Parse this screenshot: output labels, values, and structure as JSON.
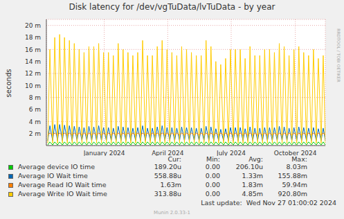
{
  "chart_data": {
    "type": "line",
    "title": "Disk latency for /dev/vgTuData/lvTuData - by year",
    "ylabel": "seconds",
    "watermark": "RRDTOOL / TOBI OETIKER",
    "last_update": "Last update:  Wed Nov 27 01:00:02 2024",
    "credit": "Munin 2.0.33-1",
    "legend": "bottom",
    "grid": true,
    "legend_columns": [
      "Cur:",
      "Min:",
      "Avg:",
      "Max:"
    ],
    "xlim": [
      0,
      400
    ],
    "xticks": [
      {
        "value": 83,
        "label": "January 2024"
      },
      {
        "value": 174,
        "label": "April 2024"
      },
      {
        "value": 265,
        "label": "July 2024"
      },
      {
        "value": 357,
        "label": "October 2024"
      }
    ],
    "ylim": [
      0,
      0.021
    ],
    "yticks": [
      {
        "value": 0.002,
        "label": "2 m"
      },
      {
        "value": 0.004,
        "label": "4 m"
      },
      {
        "value": 0.006,
        "label": "6 m"
      },
      {
        "value": 0.008,
        "label": "8 m"
      },
      {
        "value": 0.01,
        "label": "10 m"
      },
      {
        "value": 0.012,
        "label": "12 m"
      },
      {
        "value": 0.014,
        "label": "14 m"
      },
      {
        "value": 0.016,
        "label": "16 m"
      },
      {
        "value": 0.018,
        "label": "18 m"
      },
      {
        "value": 0.02,
        "label": "20 m"
      }
    ],
    "x": [
      2,
      5,
      9,
      12,
      16,
      19,
      23,
      26,
      30,
      33,
      37,
      40,
      44,
      47,
      51,
      54,
      58,
      61,
      65,
      68,
      72,
      75,
      79,
      82,
      86,
      89,
      93,
      96,
      100,
      103,
      107,
      110,
      114,
      117,
      121,
      124,
      128,
      131,
      135,
      138,
      142,
      145,
      149,
      152,
      156,
      159,
      163,
      166,
      170,
      173,
      177,
      180,
      184,
      187,
      191,
      194,
      198,
      201,
      205,
      208,
      212,
      215,
      219,
      222,
      226,
      229,
      233,
      236,
      240,
      243,
      247,
      250,
      254,
      257,
      261,
      264,
      268,
      271,
      275,
      278,
      282,
      285,
      289,
      292,
      296,
      299,
      303,
      306,
      310,
      313,
      317,
      320,
      324,
      327,
      331,
      334,
      338,
      341,
      345,
      348,
      352,
      355,
      359,
      362,
      366,
      369,
      373,
      376,
      380,
      383,
      387,
      390,
      394,
      397,
      400
    ],
    "series": [
      {
        "name": "Average device IO time",
        "color": "#00cc00",
        "stats": [
          "189.20u",
          "0.00",
          "206.10u",
          "8.03m"
        ],
        "values": [
          0.0001,
          0.0006,
          0.0001,
          0.0006,
          0.0001,
          0.0006,
          0.0001,
          0.0006,
          0.0001,
          0.0006,
          0.0001,
          0.0006,
          0.0001,
          0.0006,
          0.0001,
          0.0006,
          0.0001,
          0.0006,
          0.0001,
          0.0006,
          0.0001,
          0.0006,
          0.0001,
          0.0006,
          0.0001,
          0.0006,
          0.0001,
          0.0006,
          0.0001,
          0.0006,
          0.0001,
          0.0006,
          0.0001,
          0.0006,
          0.0001,
          0.0006,
          0.0001,
          0.0006,
          0.0001,
          0.0006,
          0.0001,
          0.0006,
          0.0001,
          0.0006,
          0.0001,
          0.0006,
          0.0001,
          0.0006,
          0.0001,
          0.0006,
          0.0001,
          0.0006,
          0.0001,
          0.0006,
          0.0001,
          0.0006,
          0.0001,
          0.0006,
          0.0001,
          0.0006,
          0.0001,
          0.0006,
          0.0001,
          0.0006,
          0.0001,
          0.0006,
          0.0001,
          0.0006,
          0.0001,
          0.0006,
          0.0001,
          0.0006,
          0.0001,
          0.0006,
          0.0001,
          0.0006,
          0.0001,
          0.0006,
          0.0001,
          0.0006,
          0.0001,
          0.0006,
          0.0001,
          0.0006,
          0.0001,
          0.0006,
          0.0001,
          0.0006,
          0.0001,
          0.0006,
          0.0001,
          0.0006,
          0.0001,
          0.0006,
          0.0001,
          0.0006,
          0.0001,
          0.0006,
          0.0001,
          0.0006,
          0.0001,
          0.0006,
          0.0001,
          0.0006,
          0.0001,
          0.0006,
          0.0001,
          0.0006,
          0.0001,
          0.0006,
          0.0001,
          0.0006,
          0.0001,
          0.0006,
          0.0001
        ]
      },
      {
        "name": "Average IO Wait time",
        "color": "#0066b3",
        "stats": [
          "558.88u",
          "0.00",
          "1.33m",
          "155.88m"
        ],
        "values": [
          0.0008,
          0.0033,
          0.0008,
          0.0035,
          0.0008,
          0.0035,
          0.0008,
          0.0034,
          0.0008,
          0.0033,
          0.0008,
          0.0032,
          0.0008,
          0.0031,
          0.0008,
          0.003,
          0.0008,
          0.0032,
          0.0008,
          0.0031,
          0.0008,
          0.0033,
          0.0008,
          0.003,
          0.0008,
          0.003,
          0.0008,
          0.0029,
          0.0008,
          0.0032,
          0.0008,
          0.0031,
          0.0008,
          0.003,
          0.0008,
          0.0029,
          0.0008,
          0.003,
          0.0008,
          0.0033,
          0.0008,
          0.0029,
          0.0008,
          0.0029,
          0.0008,
          0.0031,
          0.0008,
          0.0033,
          0.0008,
          0.003,
          0.0008,
          0.003,
          0.0008,
          0.0029,
          0.0008,
          0.0031,
          0.0008,
          0.003,
          0.0008,
          0.003,
          0.0008,
          0.0029,
          0.0008,
          0.0029,
          0.0008,
          0.0032,
          0.0008,
          0.0031,
          0.0008,
          0.0028,
          0.0008,
          0.0027,
          0.0008,
          0.0028,
          0.0008,
          0.003,
          0.0008,
          0.003,
          0.0008,
          0.003,
          0.0008,
          0.0028,
          0.0008,
          0.0031,
          0.0008,
          0.0029,
          0.0008,
          0.0029,
          0.0008,
          0.003,
          0.0008,
          0.003,
          0.0008,
          0.003,
          0.0008,
          0.0032,
          0.0008,
          0.0031,
          0.0008,
          0.0029,
          0.0008,
          0.003,
          0.0008,
          0.0031,
          0.0008,
          0.003,
          0.0008,
          0.0029,
          0.0008,
          0.003,
          0.0008,
          0.0028,
          0.0008,
          0.0029,
          0.0008
        ]
      },
      {
        "name": "Average Read IO Wait time",
        "color": "#ff8000",
        "stats": [
          "1.63m",
          "0.00",
          "1.83m",
          "59.94m"
        ],
        "values": [
          0.0017,
          0.0021,
          0.0017,
          0.0021,
          0.0017,
          0.0021,
          0.0017,
          0.0021,
          0.0017,
          0.0021,
          0.0017,
          0.0021,
          0.0017,
          0.0021,
          0.0017,
          0.0021,
          0.0017,
          0.0021,
          0.0017,
          0.0021,
          0.0017,
          0.0021,
          0.0017,
          0.0021,
          0.0017,
          0.0021,
          0.0017,
          0.0021,
          0.0017,
          0.0021,
          0.0017,
          0.0021,
          0.0017,
          0.0021,
          0.0017,
          0.0021,
          0.0017,
          0.0021,
          0.0017,
          0.0021,
          0.0017,
          0.0021,
          0.0017,
          0.0021,
          0.0017,
          0.0021,
          0.0017,
          0.0021,
          0.0017,
          0.0021,
          0.0017,
          0.0021,
          0.0017,
          0.0021,
          0.0017,
          0.0021,
          0.0017,
          0.0021,
          0.0017,
          0.0021,
          0.0017,
          0.0021,
          0.0017,
          0.0021,
          0.0017,
          0.0021,
          0.0017,
          0.0021,
          0.0017,
          0.0021,
          0.0017,
          0.0021,
          0.0017,
          0.0021,
          0.0017,
          0.0021,
          0.0017,
          0.0021,
          0.0017,
          0.0021,
          0.0017,
          0.0021,
          0.0017,
          0.0021,
          0.0017,
          0.0021,
          0.0017,
          0.0021,
          0.0017,
          0.0021,
          0.0017,
          0.0021,
          0.0017,
          0.0021,
          0.0017,
          0.0021,
          0.0017,
          0.0021,
          0.0017,
          0.0021,
          0.0017,
          0.0021,
          0.0017,
          0.0021,
          0.0017,
          0.0021,
          0.0017,
          0.0021,
          0.0017,
          0.0021,
          0.0017,
          0.0021,
          0.0017,
          0.0021,
          0.0017
        ]
      },
      {
        "name": "Average Write IO Wait time",
        "color": "#ffcc00",
        "stats": [
          "313.88u",
          "0.00",
          "4.85m",
          "920.80m"
        ],
        "values": [
          0.0004,
          0.016,
          0.0004,
          0.018,
          0.0004,
          0.0185,
          0.0004,
          0.018,
          0.0004,
          0.0175,
          0.0004,
          0.017,
          0.0004,
          0.016,
          0.0004,
          0.0155,
          0.0004,
          0.0165,
          0.0004,
          0.0165,
          0.0004,
          0.017,
          0.0004,
          0.0155,
          0.0004,
          0.0155,
          0.0004,
          0.015,
          0.0004,
          0.017,
          0.0004,
          0.016,
          0.0004,
          0.0155,
          0.0004,
          0.015,
          0.0004,
          0.0155,
          0.0004,
          0.0175,
          0.0004,
          0.015,
          0.0004,
          0.015,
          0.0004,
          0.0165,
          0.0004,
          0.0175,
          0.0004,
          0.016,
          0.0004,
          0.0155,
          0.0004,
          0.015,
          0.0004,
          0.0165,
          0.0004,
          0.016,
          0.0004,
          0.0155,
          0.0004,
          0.015,
          0.0004,
          0.015,
          0.0004,
          0.0175,
          0.0004,
          0.0165,
          0.0004,
          0.014,
          0.0004,
          0.0135,
          0.0004,
          0.0145,
          0.0004,
          0.016,
          0.0004,
          0.016,
          0.0004,
          0.016,
          0.0004,
          0.0145,
          0.0004,
          0.0165,
          0.0004,
          0.015,
          0.0004,
          0.015,
          0.0004,
          0.016,
          0.0004,
          0.016,
          0.0004,
          0.0155,
          0.0004,
          0.017,
          0.0004,
          0.0165,
          0.0004,
          0.015,
          0.0004,
          0.016,
          0.0004,
          0.0165,
          0.0004,
          0.0155,
          0.0004,
          0.015,
          0.0004,
          0.016,
          0.0004,
          0.0145,
          0.0004,
          0.015,
          0.0004
        ]
      }
    ]
  }
}
